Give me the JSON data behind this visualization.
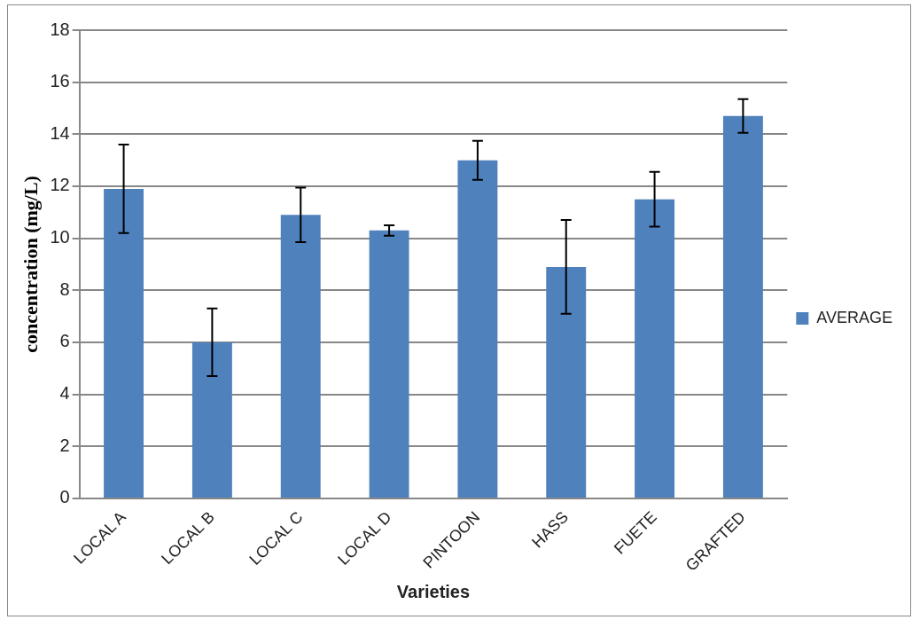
{
  "chart_data": {
    "type": "bar",
    "xlabel": "Varieties",
    "ylabel": "concentration (mg/L)",
    "categories": [
      "LOCAL A",
      "LOCAL B",
      "LOCAL C",
      "LOCAL D",
      "PINTOON",
      "HASS",
      "FUETE",
      "GRAFTED"
    ],
    "series": [
      {
        "name": "AVERAGE",
        "color": "#4f81bd",
        "values": [
          11.9,
          6.0,
          10.9,
          10.3,
          13.0,
          8.9,
          11.5,
          14.7
        ],
        "errors": [
          1.7,
          1.3,
          1.05,
          0.2,
          0.75,
          1.8,
          1.05,
          0.65
        ]
      }
    ],
    "ylim": [
      0,
      18
    ],
    "yticks": [
      0,
      2,
      4,
      6,
      8,
      10,
      12,
      14,
      16,
      18
    ],
    "grid": "y",
    "legend": "right"
  }
}
